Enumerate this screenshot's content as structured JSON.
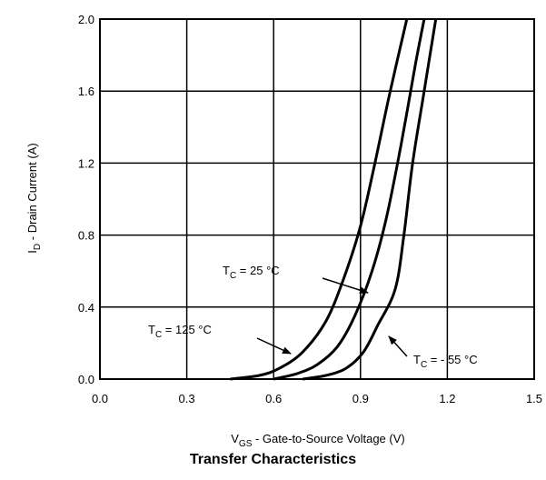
{
  "chart_data": {
    "type": "line",
    "title": "Transfer Characteristics",
    "xlabel": {
      "main": "V",
      "sub": "GS",
      "rest": " - Gate-to-Source Voltage (V)"
    },
    "ylabel": {
      "main": "I",
      "sub": "D",
      "rest": " - Drain Current (A)"
    },
    "xlim": [
      0.0,
      1.5
    ],
    "ylim": [
      0.0,
      2.0
    ],
    "xticks": [
      "0.0",
      "0.3",
      "0.6",
      "0.9",
      "1.2",
      "1.5"
    ],
    "yticks": [
      "0.0",
      "0.4",
      "0.8",
      "1.2",
      "1.6",
      "2.0"
    ],
    "grid": true,
    "series": [
      {
        "name": "T_C = 125 °C",
        "x": [
          0.45,
          0.55,
          0.62,
          0.7,
          0.78,
          0.84,
          0.9,
          0.95,
          1.0,
          1.06
        ],
        "y": [
          0.0,
          0.02,
          0.06,
          0.15,
          0.32,
          0.55,
          0.85,
          1.2,
          1.58,
          2.0
        ]
      },
      {
        "name": "T_C = 25 °C",
        "x": [
          0.6,
          0.68,
          0.75,
          0.82,
          0.88,
          0.94,
          0.99,
          1.04,
          1.09,
          1.12
        ],
        "y": [
          0.0,
          0.03,
          0.08,
          0.18,
          0.35,
          0.6,
          0.9,
          1.3,
          1.75,
          2.0
        ]
      },
      {
        "name": "T_C = - 55 °C",
        "x": [
          0.7,
          0.78,
          0.85,
          0.91,
          0.96,
          1.02,
          1.05,
          1.08,
          1.12,
          1.16
        ],
        "y": [
          0.0,
          0.02,
          0.06,
          0.15,
          0.3,
          0.5,
          0.8,
          1.2,
          1.6,
          2.0
        ]
      }
    ],
    "annotations": [
      {
        "text_main": "T",
        "text_sub": "C",
        "text_rest": " = 25 °C",
        "target": [
          0.99,
          0.45
        ]
      },
      {
        "text_main": "T",
        "text_sub": "C",
        "text_rest": " = 125 °C",
        "target": [
          0.83,
          0.12
        ]
      },
      {
        "text_main": "T",
        "text_sub": "C",
        "text_rest": " = - 55 °C",
        "target": [
          1.05,
          0.22
        ]
      }
    ]
  }
}
